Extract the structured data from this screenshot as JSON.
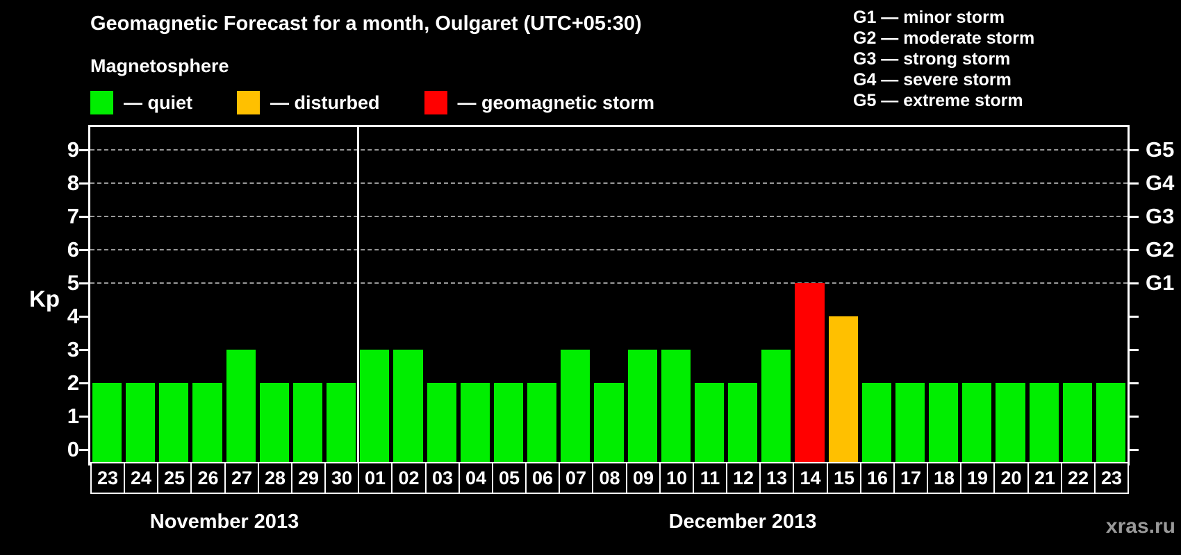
{
  "title": "Geomagnetic Forecast for a month, Oulgaret (UTC+05:30)",
  "watermark": "xras.ru",
  "legend": {
    "heading": "Magnetosphere",
    "items": [
      {
        "status": "quiet",
        "label": "— quiet",
        "color": "#00ee00"
      },
      {
        "status": "disturbed",
        "label": "— disturbed",
        "color": "#ffc000"
      },
      {
        "status": "storm",
        "label": "— geomagnetic storm",
        "color": "#ff0000"
      }
    ]
  },
  "storm_scale_legend": {
    "items": [
      {
        "code": "G1",
        "label": "G1 — minor storm"
      },
      {
        "code": "G2",
        "label": "G2 — moderate storm"
      },
      {
        "code": "G3",
        "label": "G3 — strong storm"
      },
      {
        "code": "G4",
        "label": "G4 — severe storm"
      },
      {
        "code": "G5",
        "label": "G5 — extreme storm"
      }
    ]
  },
  "chart_data": {
    "type": "bar",
    "ylabel": "Kp",
    "ylim": [
      0,
      9
    ],
    "yticks": [
      0,
      1,
      2,
      3,
      4,
      5,
      6,
      7,
      8,
      9
    ],
    "grid_levels": [
      5,
      6,
      7,
      8,
      9
    ],
    "grid_color": "#999999",
    "grid_on": true,
    "legend_position": "top",
    "right_axis_labels": [
      {
        "level": 5,
        "label": "G1"
      },
      {
        "level": 6,
        "label": "G2"
      },
      {
        "level": 7,
        "label": "G3"
      },
      {
        "level": 8,
        "label": "G4"
      },
      {
        "level": 9,
        "label": "G5"
      }
    ],
    "status_colors": {
      "quiet": "#00ee00",
      "disturbed": "#ffc000",
      "storm": "#ff0000"
    },
    "months": [
      {
        "label": "November 2013",
        "points": [
          {
            "day": "23",
            "kp": 2,
            "status": "quiet"
          },
          {
            "day": "24",
            "kp": 2,
            "status": "quiet"
          },
          {
            "day": "25",
            "kp": 2,
            "status": "quiet"
          },
          {
            "day": "26",
            "kp": 2,
            "status": "quiet"
          },
          {
            "day": "27",
            "kp": 3,
            "status": "quiet"
          },
          {
            "day": "28",
            "kp": 2,
            "status": "quiet"
          },
          {
            "day": "29",
            "kp": 2,
            "status": "quiet"
          },
          {
            "day": "30",
            "kp": 2,
            "status": "quiet"
          }
        ]
      },
      {
        "label": "December 2013",
        "points": [
          {
            "day": "01",
            "kp": 3,
            "status": "quiet"
          },
          {
            "day": "02",
            "kp": 3,
            "status": "quiet"
          },
          {
            "day": "03",
            "kp": 2,
            "status": "quiet"
          },
          {
            "day": "04",
            "kp": 2,
            "status": "quiet"
          },
          {
            "day": "05",
            "kp": 2,
            "status": "quiet"
          },
          {
            "day": "06",
            "kp": 2,
            "status": "quiet"
          },
          {
            "day": "07",
            "kp": 3,
            "status": "quiet"
          },
          {
            "day": "08",
            "kp": 2,
            "status": "quiet"
          },
          {
            "day": "09",
            "kp": 3,
            "status": "quiet"
          },
          {
            "day": "10",
            "kp": 3,
            "status": "quiet"
          },
          {
            "day": "11",
            "kp": 2,
            "status": "quiet"
          },
          {
            "day": "12",
            "kp": 2,
            "status": "quiet"
          },
          {
            "day": "13",
            "kp": 3,
            "status": "quiet"
          },
          {
            "day": "14",
            "kp": 5,
            "status": "storm"
          },
          {
            "day": "15",
            "kp": 4,
            "status": "disturbed"
          },
          {
            "day": "16",
            "kp": 2,
            "status": "quiet"
          },
          {
            "day": "17",
            "kp": 2,
            "status": "quiet"
          },
          {
            "day": "18",
            "kp": 2,
            "status": "quiet"
          },
          {
            "day": "19",
            "kp": 2,
            "status": "quiet"
          },
          {
            "day": "20",
            "kp": 2,
            "status": "quiet"
          },
          {
            "day": "21",
            "kp": 2,
            "status": "quiet"
          },
          {
            "day": "22",
            "kp": 2,
            "status": "quiet"
          },
          {
            "day": "23",
            "kp": 2,
            "status": "quiet"
          }
        ]
      }
    ]
  }
}
